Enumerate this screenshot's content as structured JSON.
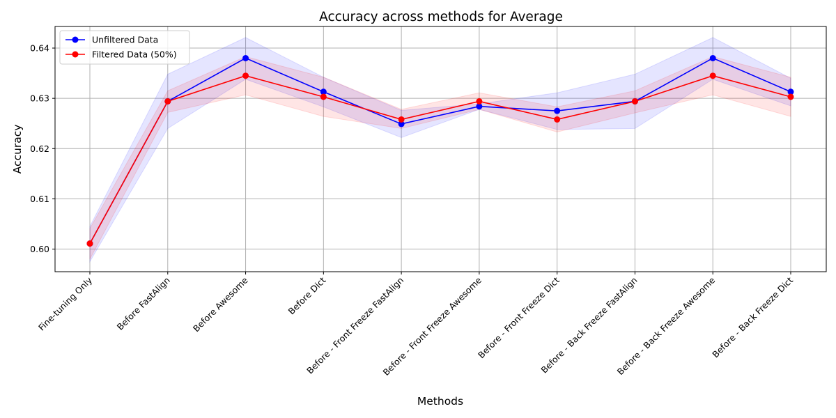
{
  "chart_data": {
    "type": "line",
    "title": "Accuracy across methods for Average",
    "xlabel": "Methods",
    "ylabel": "Accuracy",
    "categories": [
      "Fine-tuning Only",
      "Before FastAlign",
      "Before Awesome",
      "Before Dict",
      "Before - Front Freeze FastAlign",
      "Before - Front Freeze Awesome",
      "Before - Front Freeze Dict",
      "Before - Back Freeze FastAlign",
      "Before - Back Freeze Awesome",
      "Before - Back Freeze Dict"
    ],
    "ylim": [
      0.5955,
      0.6443
    ],
    "yticks": [
      0.6,
      0.61,
      0.62,
      0.63,
      0.64
    ],
    "ytick_labels": [
      "0.60",
      "0.61",
      "0.62",
      "0.63",
      "0.64"
    ],
    "grid": true,
    "legend_position": "top-left",
    "series": [
      {
        "name": "Unfiltered Data",
        "color": "#0000ff",
        "values": [
          0.6011,
          0.6294,
          0.638,
          0.6313,
          0.6249,
          0.6284,
          0.6275,
          0.6294,
          0.638,
          0.6313
        ],
        "lower": [
          0.5975,
          0.624,
          0.6338,
          0.6283,
          0.6222,
          0.6278,
          0.6238,
          0.624,
          0.6338,
          0.6285
        ],
        "upper": [
          0.6045,
          0.6348,
          0.6421,
          0.6342,
          0.6276,
          0.6289,
          0.6311,
          0.6348,
          0.6421,
          0.634
        ]
      },
      {
        "name": "Filtered Data (50%)",
        "color": "#ff0000",
        "values": [
          0.6011,
          0.6294,
          0.6345,
          0.6303,
          0.6258,
          0.6294,
          0.6258,
          0.6294,
          0.6345,
          0.6303
        ],
        "lower": [
          0.598,
          0.6272,
          0.6307,
          0.6264,
          0.624,
          0.6278,
          0.6233,
          0.6271,
          0.6307,
          0.6264
        ],
        "upper": [
          0.6041,
          0.6315,
          0.6383,
          0.6342,
          0.6278,
          0.6311,
          0.6283,
          0.6315,
          0.6383,
          0.6342
        ]
      }
    ]
  }
}
